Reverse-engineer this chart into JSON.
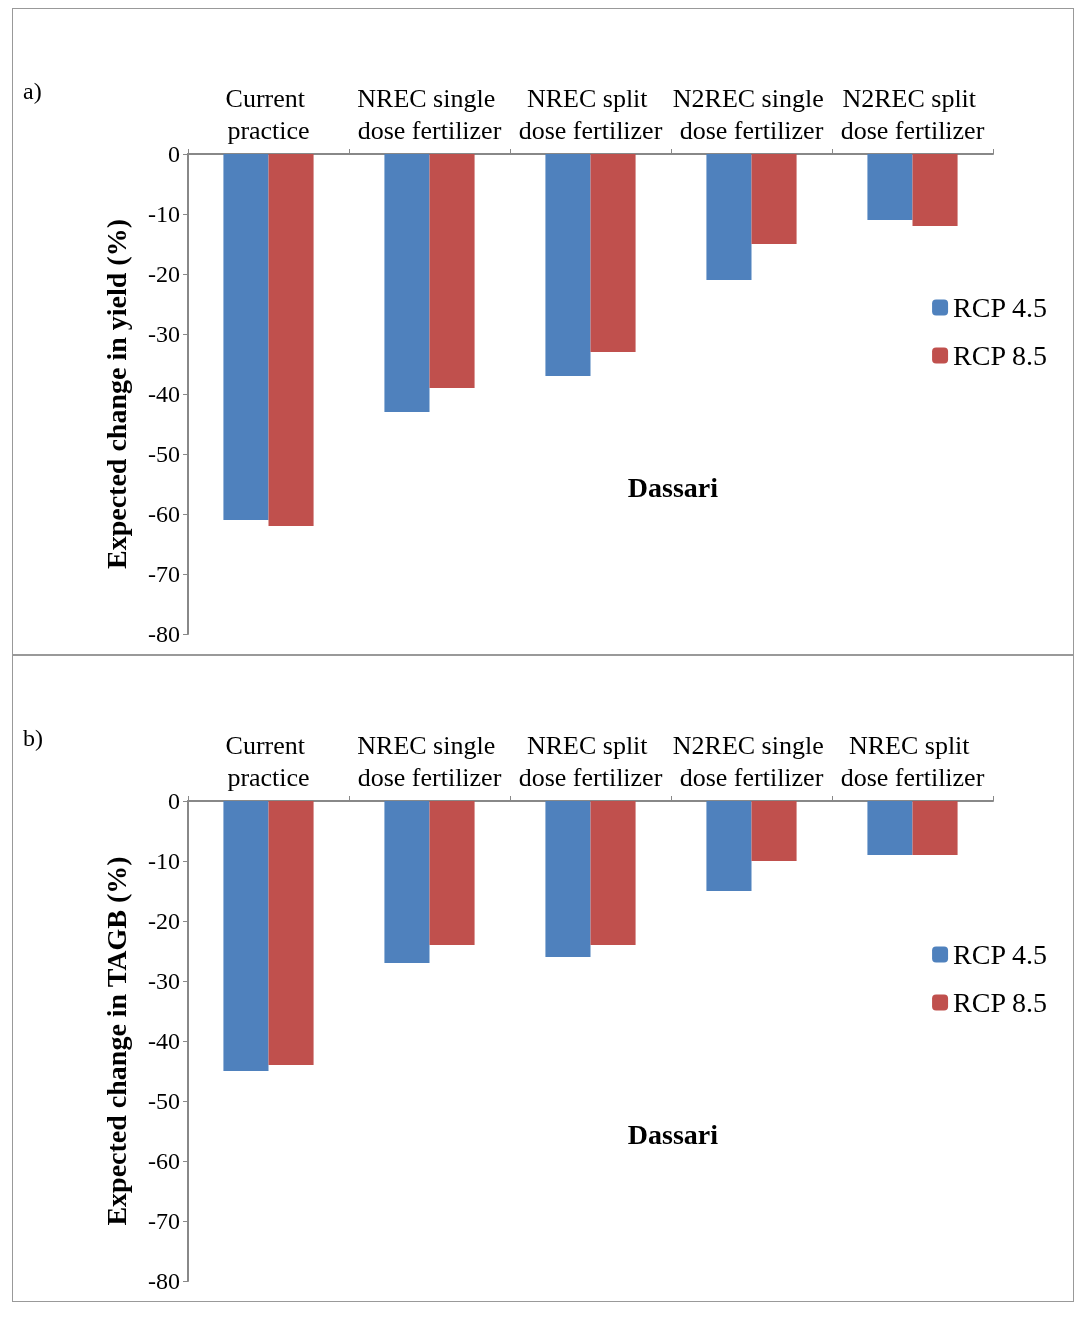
{
  "chart_data": [
    {
      "type": "bar",
      "ylabel": "Expected change in yield (%)",
      "annotations": [
        "a)",
        "Dassari"
      ],
      "categories": [
        "Current practice",
        "NREC single dose fertilizer",
        "NREC split dose fertilizer",
        "N2REC single dose fertilizer",
        "N2REC split dose fertilizer"
      ],
      "series": [
        {
          "name": "RCP 4.5",
          "color": "#4f81bd",
          "values": [
            -61,
            -43,
            -37,
            -21,
            -11
          ]
        },
        {
          "name": "RCP 8.5",
          "color": "#c0504d",
          "values": [
            -62,
            -39,
            -33,
            -15,
            -12
          ]
        }
      ],
      "ylim": [
        -80,
        0
      ],
      "yticks": [
        -80,
        -70,
        -60,
        -50,
        -40,
        -30,
        -20,
        -10,
        0
      ],
      "grid": false,
      "legend": "right"
    },
    {
      "type": "bar",
      "ylabel": "Expected change in TAGB (%)",
      "annotations": [
        "b)",
        "Dassari"
      ],
      "categories": [
        "Current practice",
        "NREC single dose fertilizer",
        "NREC split dose fertilizer",
        "N2REC single dose fertilizer",
        "NREC split dose fertilizer"
      ],
      "series": [
        {
          "name": "RCP 4.5",
          "color": "#4f81bd",
          "values": [
            -45,
            -27,
            -26,
            -15,
            -9
          ]
        },
        {
          "name": "RCP 8.5",
          "color": "#c0504d",
          "values": [
            -44,
            -24,
            -24,
            -10,
            -9
          ]
        }
      ],
      "ylim": [
        -80,
        0
      ],
      "yticks": [
        -80,
        -70,
        -60,
        -50,
        -40,
        -30,
        -20,
        -10,
        0
      ],
      "grid": false,
      "legend": "right"
    }
  ]
}
